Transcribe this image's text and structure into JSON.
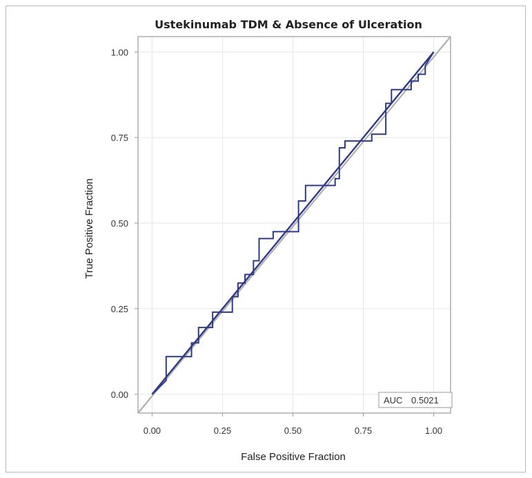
{
  "chart_data": {
    "type": "line",
    "title": "Ustekinumab TDM & Absence of Ulceration",
    "xlabel": "False Positive Fraction",
    "ylabel": "True Positive Fraction",
    "xlim": [
      -0.05,
      1.06
    ],
    "ylim": [
      -0.055,
      1.045
    ],
    "xticks": [
      0,
      0.25,
      0.5,
      0.75,
      1.0
    ],
    "yticks": [
      0,
      0.25,
      0.5,
      0.75,
      1.0
    ],
    "xtick_labels": [
      "0.00",
      "0.25",
      "0.50",
      "0.75",
      "1.00"
    ],
    "ytick_labels": [
      "0.00",
      "0.25",
      "0.50",
      "0.75",
      "1.00"
    ],
    "grid": true,
    "annotation": {
      "label": "AUC",
      "value": "0.5021",
      "placement": "bottom-right"
    },
    "colors": {
      "roc": "#2e3a87",
      "smooth": "#2e3a87",
      "reference": "#b0b0b0",
      "grid": "#e6e6e6",
      "axes": "#9a9a9a"
    },
    "series": [
      {
        "role": "empirical-roc-step",
        "x": [
          0,
          0.05,
          0.05,
          0.14,
          0.14,
          0.165,
          0.165,
          0.215,
          0.215,
          0.285,
          0.285,
          0.305,
          0.305,
          0.33,
          0.33,
          0.36,
          0.36,
          0.38,
          0.38,
          0.43,
          0.43,
          0.52,
          0.52,
          0.545,
          0.545,
          0.65,
          0.65,
          0.665,
          0.665,
          0.685,
          0.685,
          0.78,
          0.78,
          0.83,
          0.83,
          0.85,
          0.85,
          0.92,
          0.92,
          0.945,
          0.945,
          0.97,
          0.97,
          1.0
        ],
        "y": [
          0,
          0.04,
          0.11,
          0.11,
          0.15,
          0.15,
          0.195,
          0.195,
          0.24,
          0.24,
          0.285,
          0.285,
          0.325,
          0.325,
          0.35,
          0.35,
          0.39,
          0.39,
          0.455,
          0.455,
          0.475,
          0.475,
          0.565,
          0.565,
          0.61,
          0.61,
          0.63,
          0.63,
          0.72,
          0.72,
          0.74,
          0.74,
          0.76,
          0.76,
          0.85,
          0.85,
          0.89,
          0.89,
          0.915,
          0.915,
          0.935,
          0.935,
          0.96,
          1.0
        ]
      },
      {
        "role": "smoothed-roc",
        "x": [
          0,
          1.0
        ],
        "y": [
          0,
          1.0
        ]
      },
      {
        "role": "chance-diagonal",
        "x": [
          -0.05,
          1.06
        ],
        "y": [
          -0.055,
          1.045
        ]
      }
    ]
  }
}
